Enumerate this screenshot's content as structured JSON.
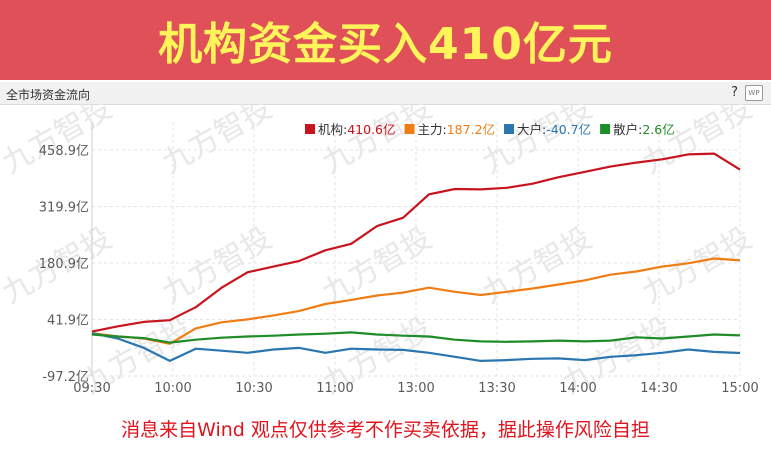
{
  "banner": {
    "title": "机构资金买入410亿元"
  },
  "panel": {
    "title": "全市场资金流向",
    "help": "?",
    "wp_badge": "WP"
  },
  "watermark": "九方智投",
  "footer": {
    "disclaimer": "消息来自Wind 观点仅供参考不作买卖依据，据此操作风险自担"
  },
  "colors": {
    "banner_bg": "#e05058",
    "banner_text": "#fff45a",
    "footer_text": "#e0141e"
  },
  "chart_data": {
    "type": "line",
    "y_tick_labels": [
      "458.9亿",
      "319.9亿",
      "180.9亿",
      "41.9亿",
      "-97.2亿"
    ],
    "y_ticks": [
      458.9,
      319.9,
      180.9,
      41.9,
      -97.2
    ],
    "ylim": [
      -97.2,
      458.9
    ],
    "x_tick_labels": [
      "09:30",
      "10:00",
      "10:30",
      "11:00",
      "13:00",
      "13:30",
      "14:00",
      "14:30",
      "15:00"
    ],
    "x": [
      "09:30",
      "09:40",
      "09:50",
      "10:00",
      "10:10",
      "10:20",
      "10:30",
      "10:40",
      "10:50",
      "11:00",
      "11:10",
      "11:20",
      "11:30/13:00",
      "13:10",
      "13:20",
      "13:30",
      "13:40",
      "13:50",
      "14:00",
      "14:10",
      "14:20",
      "14:30",
      "14:40",
      "14:50",
      "14:55",
      "15:00"
    ],
    "series": [
      {
        "name": "机构",
        "legend_value": "410.6亿",
        "color": "#c8141e",
        "values": [
          12,
          25,
          36,
          40,
          72,
          120,
          158,
          172,
          186,
          212,
          228,
          272,
          292,
          350,
          363,
          362,
          366,
          376,
          392,
          405,
          418,
          428,
          436,
          448,
          450,
          410.6
        ]
      },
      {
        "name": "主力",
        "legend_value": "187.2亿",
        "color": "#f07d14",
        "values": [
          8,
          0,
          -5,
          -18,
          20,
          35,
          42,
          52,
          63,
          80,
          90,
          101,
          108,
          120,
          110,
          102,
          110,
          118,
          128,
          138,
          152,
          160,
          172,
          180,
          192,
          187.2
        ]
      },
      {
        "name": "大户",
        "legend_value": "-40.7亿",
        "color": "#2a76b0",
        "values": [
          8,
          -5,
          -28,
          -60,
          -30,
          -35,
          -40,
          -32,
          -28,
          -40,
          -30,
          -32,
          -33,
          -40,
          -50,
          -60,
          -58,
          -55,
          -54,
          -58,
          -50,
          -46,
          -40,
          -32,
          -38,
          -40.7
        ]
      },
      {
        "name": "散户",
        "legend_value": "2.6亿",
        "color": "#1e8c28",
        "values": [
          5,
          0,
          -4,
          -15,
          -8,
          -3,
          0,
          2,
          5,
          7,
          10,
          5,
          2,
          0,
          -8,
          -12,
          -13,
          -12,
          -10,
          -12,
          -10,
          -2,
          -5,
          0,
          5,
          2.6
        ]
      }
    ],
    "grid": true,
    "legend_position": "top-right"
  }
}
